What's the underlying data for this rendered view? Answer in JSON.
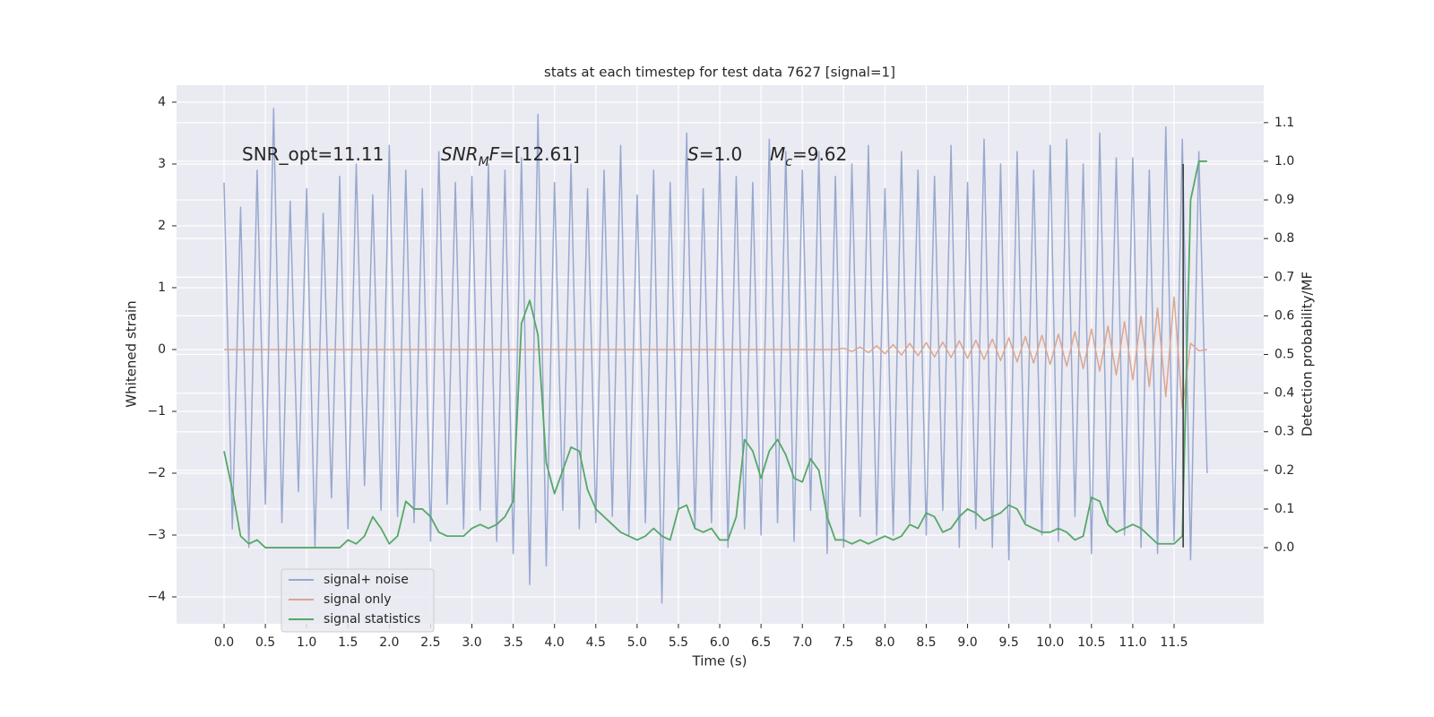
{
  "chart_data": {
    "type": "line",
    "title": "stats at each timestep for test data 7627 [signal=1]",
    "xlabel": "Time (s)",
    "ylabel": "Whitened strain",
    "y2label": "Detection probability/MF",
    "x": [
      0,
      0.1,
      0.2,
      0.3,
      0.4,
      0.5,
      0.6,
      0.7,
      0.8,
      0.9,
      1,
      1.1,
      1.2,
      1.3,
      1.4,
      1.5,
      1.6,
      1.7,
      1.8,
      1.9,
      2,
      2.1,
      2.2,
      2.3,
      2.4,
      2.5,
      2.6,
      2.7,
      2.8,
      2.9,
      3,
      3.1,
      3.2,
      3.3,
      3.4,
      3.5,
      3.6,
      3.7,
      3.8,
      3.9,
      4,
      4.1,
      4.2,
      4.3,
      4.4,
      4.5,
      4.6,
      4.7,
      4.8,
      4.9,
      5,
      5.1,
      5.2,
      5.3,
      5.4,
      5.5,
      5.6,
      5.7,
      5.8,
      5.9,
      6,
      6.1,
      6.2,
      6.3,
      6.4,
      6.5,
      6.6,
      6.7,
      6.8,
      6.9,
      7,
      7.1,
      7.2,
      7.3,
      7.4,
      7.5,
      7.6,
      7.7,
      7.8,
      7.9,
      8,
      8.1,
      8.2,
      8.3,
      8.4,
      8.5,
      8.6,
      8.7,
      8.8,
      8.9,
      9,
      9.1,
      9.2,
      9.3,
      9.4,
      9.5,
      9.6,
      9.7,
      9.8,
      9.9,
      10,
      10.1,
      10.2,
      10.3,
      10.4,
      10.5,
      10.6,
      10.7,
      10.8,
      10.9,
      11,
      11.1,
      11.2,
      11.3,
      11.4,
      11.5,
      11.6,
      11.7,
      11.8,
      11.9
    ],
    "series": [
      {
        "name": "signal+ noise",
        "color": "#98a9cf",
        "axis": "y",
        "values": [
          2.7,
          -2.9,
          2.3,
          -3.2,
          2.9,
          -2.5,
          3.9,
          -2.8,
          2.4,
          -2.3,
          2.6,
          -3.2,
          2.2,
          -2.4,
          2.8,
          -2.9,
          3.0,
          -2.2,
          2.5,
          -2.6,
          3.3,
          -2.7,
          2.9,
          -2.8,
          2.6,
          -3.1,
          3.2,
          -2.5,
          2.7,
          -2.9,
          2.8,
          -2.6,
          3.0,
          -3.1,
          2.9,
          -3.3,
          3.1,
          -3.8,
          3.8,
          -3.5,
          2.7,
          -2.6,
          3.0,
          -2.9,
          2.6,
          -2.8,
          2.9,
          -2.7,
          3.3,
          -3.0,
          2.5,
          -2.8,
          2.9,
          -4.1,
          2.7,
          -2.6,
          3.5,
          -2.9,
          2.6,
          -2.8,
          3.1,
          -3.2,
          2.8,
          -2.9,
          2.7,
          -3.0,
          3.4,
          -2.8,
          3.2,
          -3.1,
          2.9,
          -2.6,
          3.2,
          -3.3,
          2.8,
          -3.2,
          3.0,
          -2.7,
          3.3,
          -3.0,
          2.6,
          -3.0,
          3.2,
          -2.8,
          2.9,
          -3.0,
          2.8,
          -2.6,
          3.3,
          -3.2,
          2.7,
          -2.9,
          3.4,
          -3.2,
          3.0,
          -3.4,
          3.2,
          -2.8,
          2.9,
          -3.0,
          3.3,
          -3.1,
          3.4,
          -2.7,
          3.0,
          -3.3,
          3.5,
          -2.8,
          3.1,
          -3.0,
          3.1,
          -3.2,
          2.9,
          -3.3,
          3.6,
          -3.1,
          3.4,
          -3.4,
          3.2,
          -2.0
        ]
      },
      {
        "name": "signal only",
        "color": "#dca68f",
        "axis": "y",
        "values": [
          0,
          0,
          0,
          0,
          0,
          0,
          0,
          0,
          0,
          0,
          0,
          0,
          0,
          0,
          0,
          0,
          0,
          0,
          0,
          0,
          0,
          0,
          0,
          0,
          0,
          0,
          0,
          0,
          0,
          0,
          0,
          0,
          0,
          0,
          0,
          0,
          0,
          0,
          0,
          0,
          0,
          0,
          0,
          0,
          0,
          0,
          0,
          0,
          0,
          0,
          0,
          0,
          0,
          0,
          0,
          0,
          0,
          0,
          0,
          0,
          0,
          0,
          0,
          0,
          0,
          0,
          0,
          0,
          0,
          0,
          0,
          0,
          0,
          0,
          0,
          0.02,
          -0.03,
          0.04,
          -0.05,
          0.06,
          -0.07,
          0.08,
          -0.09,
          0.1,
          -0.1,
          0.11,
          -0.12,
          0.12,
          -0.13,
          0.14,
          -0.14,
          0.15,
          -0.16,
          0.17,
          -0.18,
          0.19,
          -0.2,
          0.21,
          -0.22,
          0.23,
          -0.24,
          0.25,
          -0.27,
          0.29,
          -0.31,
          0.33,
          -0.35,
          0.38,
          -0.41,
          0.45,
          -0.49,
          0.54,
          -0.6,
          0.67,
          -0.76,
          0.85,
          -0.95,
          0.1,
          -0.02,
          0
        ]
      },
      {
        "name": "signal statistics",
        "color": "#55a868",
        "axis": "y2",
        "values": [
          0.25,
          0.15,
          0.03,
          0.01,
          0.02,
          0,
          0,
          0,
          0,
          0,
          0,
          0,
          0,
          0,
          0,
          0.02,
          0.01,
          0.03,
          0.08,
          0.05,
          0.01,
          0.03,
          0.12,
          0.1,
          0.1,
          0.08,
          0.04,
          0.03,
          0.03,
          0.03,
          0.05,
          0.06,
          0.05,
          0.06,
          0.08,
          0.12,
          0.58,
          0.64,
          0.55,
          0.22,
          0.14,
          0.2,
          0.26,
          0.25,
          0.15,
          0.1,
          0.08,
          0.06,
          0.04,
          0.03,
          0.02,
          0.03,
          0.05,
          0.03,
          0.02,
          0.1,
          0.11,
          0.05,
          0.04,
          0.05,
          0.02,
          0.02,
          0.08,
          0.28,
          0.25,
          0.18,
          0.25,
          0.28,
          0.24,
          0.18,
          0.17,
          0.23,
          0.2,
          0.08,
          0.02,
          0.02,
          0.01,
          0.02,
          0.01,
          0.02,
          0.03,
          0.02,
          0.03,
          0.06,
          0.05,
          0.09,
          0.08,
          0.04,
          0.05,
          0.08,
          0.1,
          0.09,
          0.07,
          0.08,
          0.09,
          0.11,
          0.1,
          0.06,
          0.05,
          0.04,
          0.04,
          0.05,
          0.04,
          0.02,
          0.03,
          0.13,
          0.12,
          0.06,
          0.04,
          0.05,
          0.06,
          0.05,
          0.03,
          0.01,
          0.01,
          0.01,
          0.03,
          0.9,
          1.0,
          1.0
        ]
      }
    ],
    "vlines": [
      {
        "x": 11.61,
        "ymin": -3.2,
        "ymax": 3.0,
        "color": "#333333"
      }
    ],
    "annotations": [
      {
        "parts": [
          {
            "text": "SNR_opt=11.11"
          }
        ]
      },
      {
        "parts": [
          {
            "text": "SNR",
            "italic": true
          },
          {
            "text": "M",
            "italic": true,
            "sub": true
          },
          {
            "text": "F",
            "italic": true
          },
          {
            "text": "=[12.61]"
          }
        ]
      },
      {
        "parts": [
          {
            "text": "S",
            "italic": true
          },
          {
            "text": "=1.0"
          }
        ]
      },
      {
        "parts": [
          {
            "text": "M",
            "italic": true
          },
          {
            "text": "c",
            "italic": true,
            "sub": true
          },
          {
            "text": "=9.62"
          }
        ]
      }
    ],
    "xlim": [
      -0.575,
      12.585
    ],
    "xticks": [
      {
        "value": 0,
        "label": "0.0"
      },
      0.5,
      {
        "value": 1,
        "label": "1.0"
      },
      1.5,
      {
        "value": 2,
        "label": "2.0"
      },
      2.5,
      {
        "value": 3,
        "label": "3.0"
      },
      3.5,
      {
        "value": 4,
        "label": "4.0"
      },
      4.5,
      {
        "value": 5,
        "label": "5.0"
      },
      5.5,
      {
        "value": 6,
        "label": "6.0"
      },
      6.5,
      {
        "value": 7,
        "label": "7.0"
      },
      7.5,
      {
        "value": 8,
        "label": "8.0"
      },
      8.5,
      {
        "value": 9,
        "label": "9.0"
      },
      9.5,
      {
        "value": 10,
        "label": "10.0"
      },
      10.5,
      {
        "value": 11,
        "label": "11.0"
      },
      11.5
    ],
    "ylim": [
      -4.435,
      4.275
    ],
    "yticks": [
      {
        "value": -4,
        "label": "−4"
      },
      {
        "value": -3,
        "label": "−3"
      },
      {
        "value": -2,
        "label": "−2"
      },
      {
        "value": -1,
        "label": "−1"
      },
      0,
      1,
      2,
      3,
      4
    ],
    "y2lim": [
      -0.197,
      1.197
    ],
    "y2ticks": [
      {
        "value": 0,
        "label": "0.0"
      },
      0.1,
      0.2,
      0.3,
      0.4,
      0.5,
      0.6,
      0.7,
      0.8,
      0.9,
      {
        "value": 1,
        "label": "1.0"
      },
      1.1
    ],
    "grid": true,
    "legend": "lower left",
    "background": "#eaeaf2"
  }
}
